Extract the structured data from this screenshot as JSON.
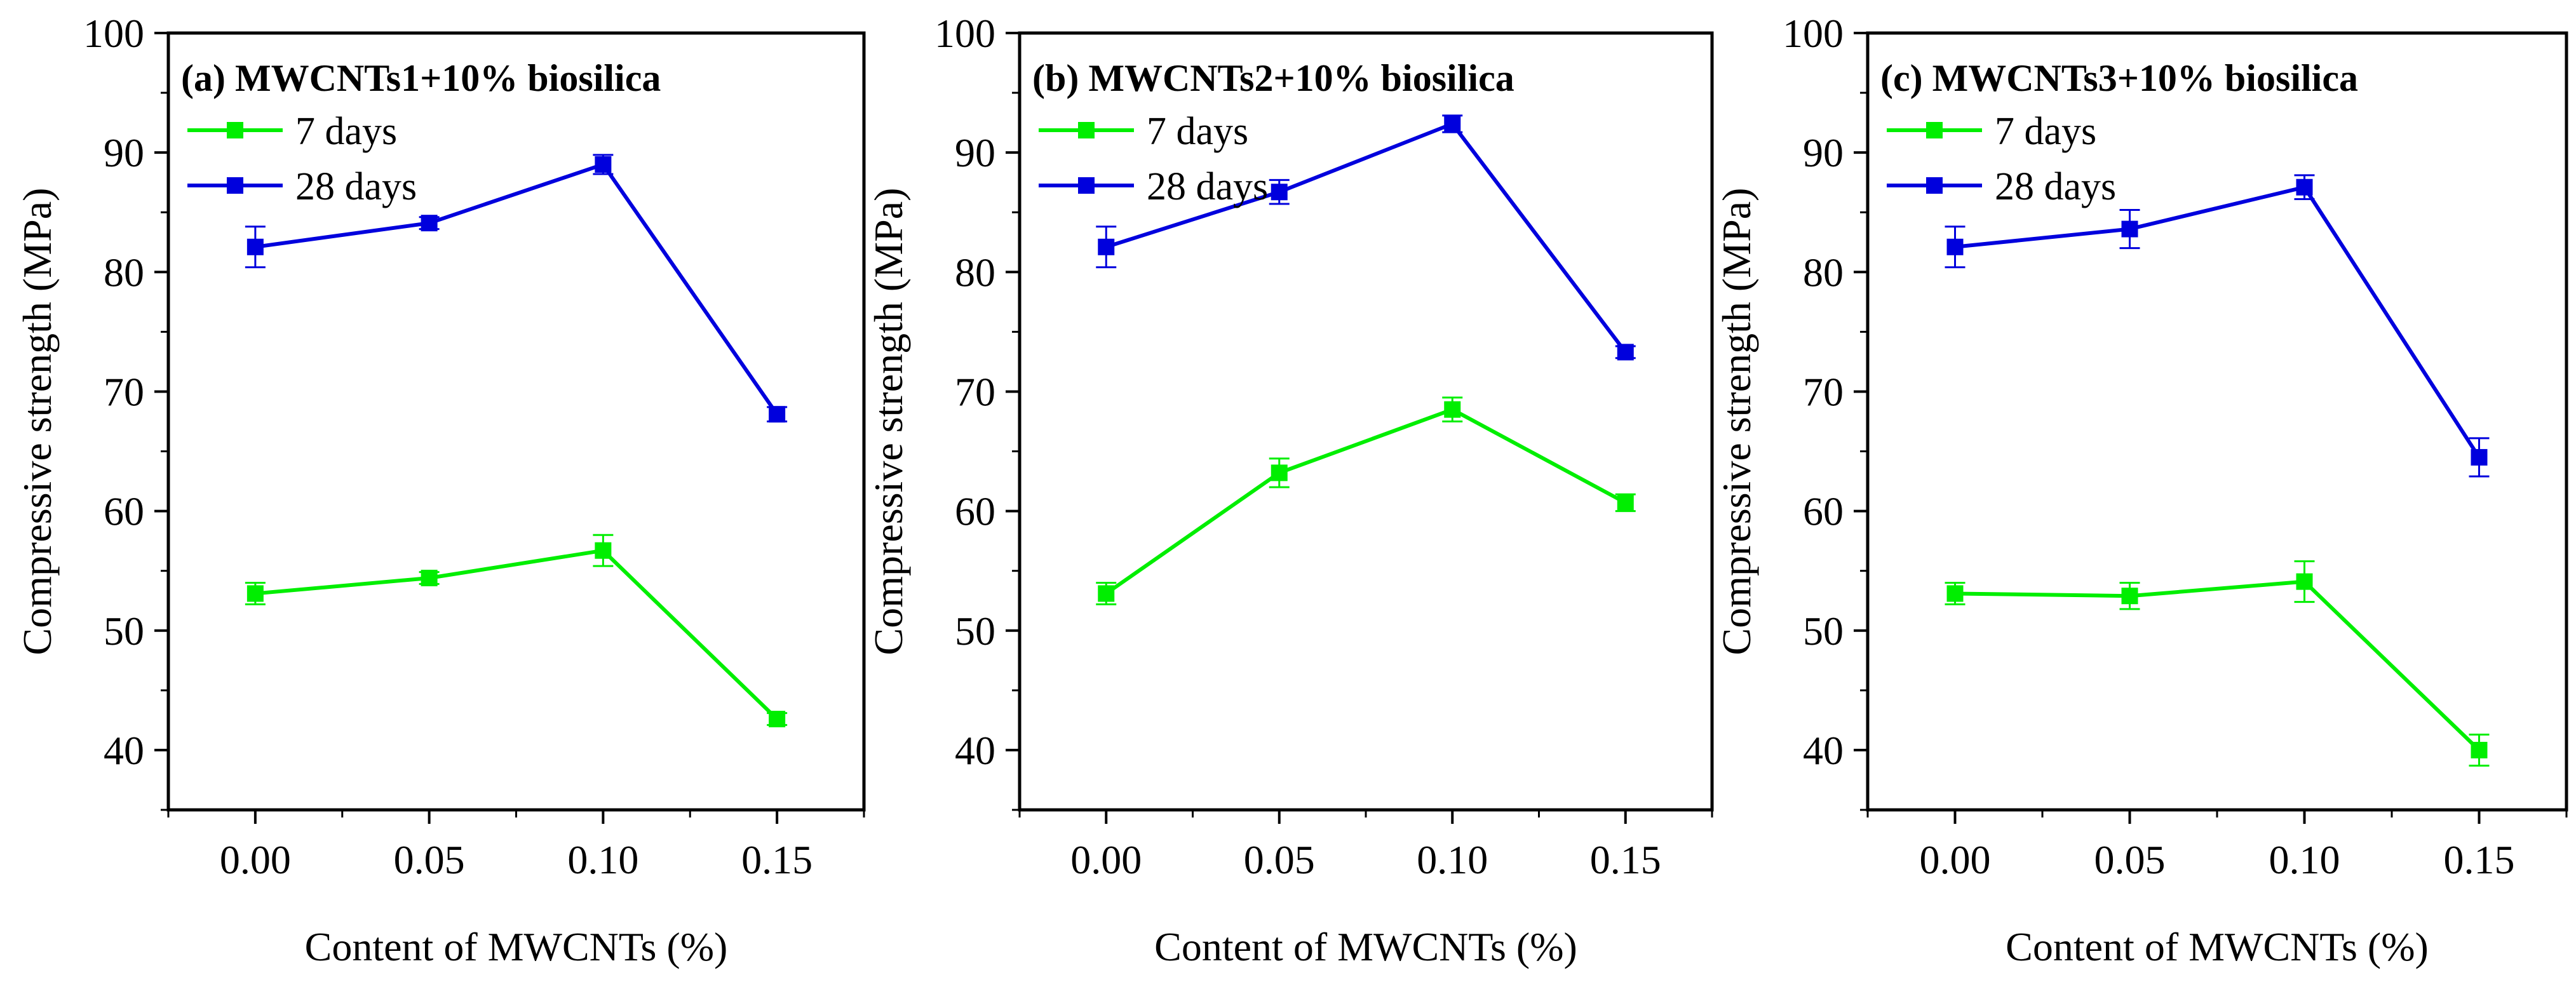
{
  "chart_data": [
    {
      "type": "line",
      "title": "(a) MWCNTs1+10% biosilica",
      "xlabel": "Content of MWCNTs (%)",
      "ylabel": "Compressive strength (MPa)",
      "x": [
        0.0,
        0.05,
        0.1,
        0.15
      ],
      "xticks": [
        "0.00",
        "0.05",
        "0.10",
        "0.15"
      ],
      "xlim": [
        -0.025,
        0.175
      ],
      "ylim": [
        35,
        100
      ],
      "yticks": [
        "40",
        "50",
        "60",
        "70",
        "80",
        "90",
        "100"
      ],
      "legend_position": "top-left",
      "series": [
        {
          "name": "7 days",
          "color": "#00ee00",
          "values": [
            53.1,
            54.4,
            56.7,
            42.6
          ],
          "errors": [
            0.9,
            0.5,
            1.3,
            0.5
          ]
        },
        {
          "name": "28 days",
          "color": "#0000dd",
          "values": [
            82.1,
            84.1,
            89.0,
            68.1
          ],
          "errors": [
            1.7,
            0.5,
            0.8,
            0.6
          ]
        }
      ]
    },
    {
      "type": "line",
      "title": "(b) MWCNTs2+10% biosilica",
      "xlabel": "Content of MWCNTs (%)",
      "ylabel": "Compressive strength (MPa)",
      "x": [
        0.0,
        0.05,
        0.1,
        0.15
      ],
      "xticks": [
        "0.00",
        "0.05",
        "0.10",
        "0.15"
      ],
      "xlim": [
        -0.025,
        0.175
      ],
      "ylim": [
        35,
        100
      ],
      "yticks": [
        "40",
        "50",
        "60",
        "70",
        "80",
        "90",
        "100"
      ],
      "legend_position": "top-left",
      "series": [
        {
          "name": "7 days",
          "color": "#00ee00",
          "values": [
            53.1,
            63.2,
            68.5,
            60.7
          ],
          "errors": [
            0.9,
            1.2,
            1.0,
            0.7
          ]
        },
        {
          "name": "28 days",
          "color": "#0000dd",
          "values": [
            82.1,
            86.7,
            92.4,
            73.3
          ],
          "errors": [
            1.7,
            1.0,
            0.7,
            0.5
          ]
        }
      ]
    },
    {
      "type": "line",
      "title": "(c) MWCNTs3+10% biosilica",
      "xlabel": "Content of MWCNTs (%)",
      "ylabel": "Compressive strength (MPa)",
      "x": [
        0.0,
        0.05,
        0.1,
        0.15
      ],
      "xticks": [
        "0.00",
        "0.05",
        "0.10",
        "0.15"
      ],
      "xlim": [
        -0.025,
        0.175
      ],
      "ylim": [
        35,
        100
      ],
      "yticks": [
        "40",
        "50",
        "60",
        "70",
        "80",
        "90",
        "100"
      ],
      "legend_position": "top-left",
      "series": [
        {
          "name": "7 days",
          "color": "#00ee00",
          "values": [
            53.1,
            52.9,
            54.1,
            40.0
          ],
          "errors": [
            0.9,
            1.1,
            1.7,
            1.3
          ]
        },
        {
          "name": "28 days",
          "color": "#0000dd",
          "values": [
            82.1,
            83.6,
            87.1,
            64.5
          ],
          "errors": [
            1.7,
            1.6,
            1.0,
            1.6
          ]
        }
      ]
    }
  ]
}
